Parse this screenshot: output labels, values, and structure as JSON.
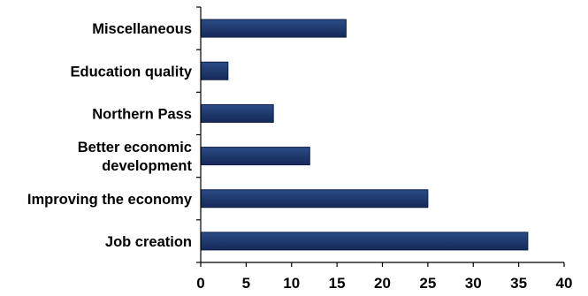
{
  "chart_data": {
    "type": "bar",
    "orientation": "horizontal",
    "title": "",
    "xlabel": "",
    "ylabel": "",
    "categories": [
      "Miscellaneous",
      "Education quality",
      "Northern Pass",
      "Better economic development",
      "Improving the economy",
      "Job creation"
    ],
    "category_lines": [
      [
        "Miscellaneous"
      ],
      [
        "Education quality"
      ],
      [
        "Northern Pass"
      ],
      [
        "Better economic",
        "development"
      ],
      [
        "Improving the economy"
      ],
      [
        "Job creation"
      ]
    ],
    "values": [
      16,
      3,
      8,
      12,
      25,
      36
    ],
    "xlim": [
      0,
      40
    ],
    "xticks": [
      0,
      5,
      10,
      15,
      20,
      25,
      30,
      35,
      40
    ],
    "grid": false,
    "legend": "none",
    "bar_color": "#1f3a6e"
  }
}
